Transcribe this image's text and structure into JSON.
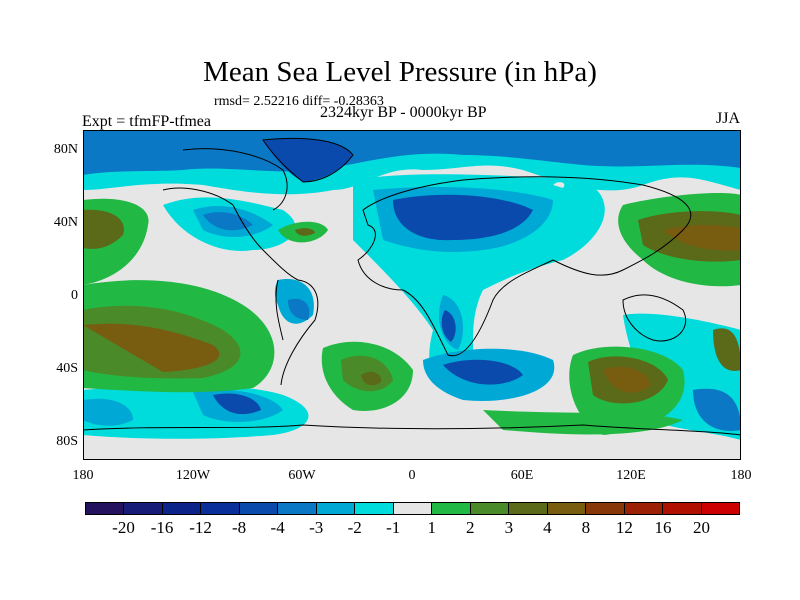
{
  "title": "Mean Sea Level Pressure (in hPa)",
  "stats": "rmsd= 2.52216 diff= -0.28363",
  "period": "2324kyr BP - 0000kyr BP",
  "experiment": "Expt = tfmFP-tfmea",
  "season": "JJA",
  "map": {
    "lat_labels": [
      "80N",
      "40N",
      "0",
      "40S",
      "80S"
    ],
    "lat_values": [
      80,
      40,
      0,
      -40,
      -80
    ],
    "lon_labels": [
      "180",
      "120W",
      "60W",
      "0",
      "60E",
      "120E",
      "180"
    ],
    "lon_values": [
      -180,
      -120,
      -60,
      0,
      60,
      120,
      180
    ],
    "background_color": "#e6e6e6"
  },
  "colorbar": {
    "labels": [
      "-20",
      "-16",
      "-12",
      "-8",
      "-4",
      "-3",
      "-2",
      "-1",
      "1",
      "2",
      "3",
      "4",
      "8",
      "12",
      "16",
      "20"
    ],
    "colors": [
      "#24125f",
      "#161c78",
      "#0c248a",
      "#0a2e9a",
      "#0a4aac",
      "#0a78c4",
      "#00a8d6",
      "#00dcdc",
      "#e6e6e6",
      "#22b844",
      "#4a8a28",
      "#5a6a18",
      "#785c10",
      "#883808",
      "#9c2004",
      "#b01000",
      "#cc0000"
    ]
  }
}
